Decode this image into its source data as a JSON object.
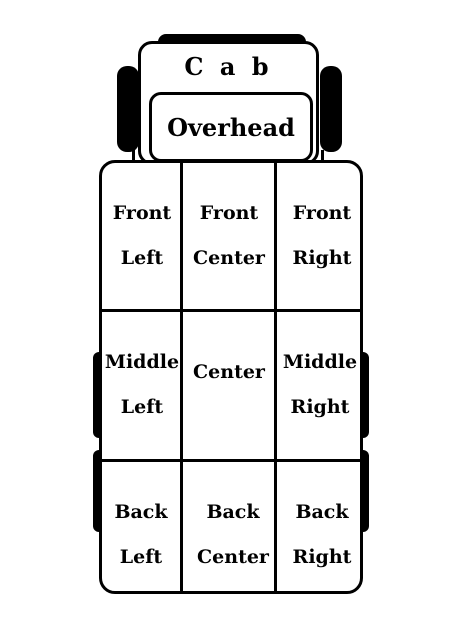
{
  "cab": {
    "title": "C a b",
    "overhead": "Overhead"
  },
  "grid": {
    "front_left": [
      "Front",
      "Left"
    ],
    "front_center": [
      "Front",
      "Center"
    ],
    "front_right": [
      "Front",
      "Right"
    ],
    "middle_left": [
      "Middle",
      "Left"
    ],
    "center": [
      "Center"
    ],
    "middle_right": [
      "Middle",
      "Right"
    ],
    "back_left": [
      "Back",
      "Left"
    ],
    "back_center": [
      "Back",
      "Center"
    ],
    "back_right": [
      "Back",
      "Right"
    ]
  }
}
